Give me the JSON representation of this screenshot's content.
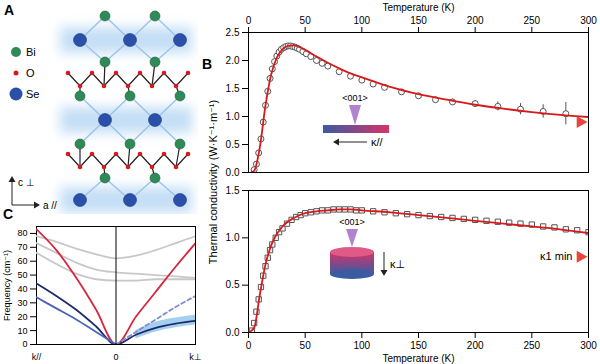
{
  "diagram": {
    "panel": "A",
    "legend": [
      {
        "label": "Bi",
        "color": "#2e8b57"
      },
      {
        "label": "O",
        "color": "#d7191c"
      },
      {
        "label": "Se",
        "color": "#2b50aa"
      }
    ],
    "axes": {
      "vertical": "c ⊥",
      "horizontal": "a //"
    }
  },
  "chart_data": [
    {
      "panel": "B",
      "type": "scatter",
      "xlabel": "Temperature (K)",
      "ylabel": "Thermal conductivity (W·K⁻¹·m⁻¹)",
      "xlim": [
        0,
        300
      ],
      "xticks": [
        0,
        50,
        100,
        150,
        200,
        250,
        300
      ],
      "ylim": [
        0,
        2.5
      ],
      "yticks": [
        {
          "value": 0,
          "label": "0.0"
        },
        0.5,
        {
          "value": 1,
          "label": "1.0"
        },
        1.5,
        {
          "value": 2,
          "label": "2.0"
        },
        2.5
      ],
      "annotations": {
        "direction": "<001>",
        "kappa": "κ//"
      },
      "series": [
        {
          "type": "scatter",
          "marker": "circle",
          "color": "#555555",
          "x": [
            5,
            7,
            9,
            11,
            13,
            15,
            17,
            19,
            21,
            23,
            25,
            27,
            29,
            31,
            33,
            35,
            37,
            39,
            41,
            43,
            45,
            48,
            51,
            55,
            60,
            65,
            70,
            80,
            90,
            100,
            110,
            120,
            135,
            150,
            165,
            180,
            200,
            220,
            240,
            260,
            280
          ],
          "values": [
            0.05,
            0.15,
            0.35,
            0.6,
            0.9,
            1.2,
            1.45,
            1.68,
            1.85,
            1.98,
            2.08,
            2.15,
            2.2,
            2.23,
            2.25,
            2.26,
            2.26,
            2.25,
            2.24,
            2.22,
            2.2,
            2.16,
            2.12,
            2.07,
            2.0,
            1.95,
            1.9,
            1.8,
            1.72,
            1.65,
            1.58,
            1.52,
            1.44,
            1.37,
            1.3,
            1.26,
            1.23,
            1.18,
            1.13,
            1.09,
            1.05
          ],
          "errors": [
            null,
            null,
            null,
            null,
            null,
            null,
            null,
            null,
            null,
            null,
            null,
            null,
            null,
            null,
            null,
            null,
            null,
            null,
            null,
            null,
            null,
            null,
            null,
            null,
            null,
            null,
            null,
            null,
            null,
            null,
            null,
            null,
            null,
            null,
            0.04,
            0.05,
            0.06,
            0.08,
            0.1,
            0.12,
            0.2
          ]
        },
        {
          "type": "line",
          "color": "#d7191c",
          "x": [
            2,
            5,
            10,
            15,
            20,
            25,
            30,
            35,
            40,
            45,
            50,
            60,
            70,
            80,
            90,
            100,
            125,
            150,
            175,
            200,
            225,
            250,
            275,
            300
          ],
          "values": [
            0,
            0.03,
            0.45,
            1.2,
            1.75,
            2.05,
            2.2,
            2.26,
            2.27,
            2.24,
            2.19,
            2.07,
            1.96,
            1.86,
            1.77,
            1.7,
            1.53,
            1.4,
            1.3,
            1.21,
            1.14,
            1.08,
            1.03,
            0.99
          ]
        }
      ],
      "limit": {
        "value": 0.9,
        "color": "#e8463a",
        "marker": "triangle"
      }
    },
    {
      "type": "scatter",
      "xlabel": "Temperature (K)",
      "xlim": [
        0,
        300
      ],
      "xticks": [
        0,
        50,
        100,
        150,
        200,
        250,
        300
      ],
      "ylim": [
        0,
        1.5
      ],
      "yticks": [
        {
          "value": 0,
          "label": "0.0"
        },
        0.5,
        {
          "value": 1,
          "label": "1.0"
        },
        1.5
      ],
      "annotations": {
        "direction": "<001>",
        "kappa": "κ⊥"
      },
      "series": [
        {
          "type": "scatter",
          "marker": "square",
          "color": "#555555",
          "x": [
            3,
            5,
            7,
            9,
            11,
            13,
            15,
            17,
            19,
            21,
            24,
            27,
            30,
            34,
            38,
            42,
            46,
            50,
            55,
            60,
            65,
            70,
            75,
            80,
            85,
            90,
            95,
            100,
            110,
            120,
            130,
            140,
            150,
            160,
            170,
            180,
            190,
            200,
            210,
            220,
            230,
            240,
            250,
            260,
            270,
            280,
            290,
            300
          ],
          "values": [
            0.02,
            0.1,
            0.22,
            0.35,
            0.48,
            0.6,
            0.7,
            0.79,
            0.87,
            0.93,
            1.0,
            1.06,
            1.1,
            1.15,
            1.19,
            1.22,
            1.24,
            1.26,
            1.27,
            1.28,
            1.29,
            1.29,
            1.3,
            1.3,
            1.3,
            1.3,
            1.29,
            1.29,
            1.28,
            1.27,
            1.26,
            1.25,
            1.24,
            1.23,
            1.22,
            1.21,
            1.2,
            1.19,
            1.18,
            1.17,
            1.16,
            1.15,
            1.14,
            1.12,
            1.11,
            1.09,
            1.08,
            1.06
          ]
        },
        {
          "type": "line",
          "color": "#d7191c",
          "x": [
            0,
            5,
            10,
            15,
            20,
            30,
            40,
            50,
            60,
            70,
            80,
            90,
            100,
            125,
            150,
            175,
            200,
            225,
            250,
            275,
            300
          ],
          "values": [
            0,
            0.05,
            0.4,
            0.72,
            0.92,
            1.12,
            1.21,
            1.26,
            1.28,
            1.29,
            1.3,
            1.3,
            1.29,
            1.27,
            1.24,
            1.21,
            1.18,
            1.15,
            1.12,
            1.09,
            1.05
          ]
        }
      ],
      "limit": {
        "value": 0.8,
        "label": "κ1 min",
        "color": "#e8463a",
        "marker": "triangle"
      }
    },
    {
      "panel": "C",
      "type": "line",
      "ylabel": "Frequency (cm⁻¹)",
      "xlim": [
        -1,
        1
      ],
      "xticks": [
        {
          "value": -1,
          "label": "k//"
        },
        0,
        {
          "value": 1,
          "label": "k⊥"
        }
      ],
      "ylim": [
        0,
        85
      ],
      "yticks": [
        0,
        10,
        20,
        30,
        40,
        50,
        60,
        70,
        80
      ],
      "band": {
        "color": "#8ec3ee",
        "x": [
          0.25,
          0.5,
          0.75,
          1
        ],
        "lower": [
          4,
          9,
          12,
          14
        ],
        "upper": [
          10,
          16,
          19,
          21
        ]
      },
      "series": [
        {
          "color": "#c8c8c8",
          "x": [
            -1,
            -0.75,
            -0.5,
            -0.25,
            0,
            0.25,
            0.5,
            0.75,
            1
          ],
          "values": [
            78,
            74,
            69,
            65,
            62,
            64,
            68,
            73,
            78
          ]
        },
        {
          "color": "#c8c8c8",
          "x": [
            -1,
            -0.75,
            -0.5,
            -0.25,
            0,
            0.25,
            0.5,
            0.75,
            1
          ],
          "values": [
            73,
            66,
            59,
            54,
            52,
            51,
            50,
            49,
            48
          ]
        },
        {
          "color": "#c8c8c8",
          "x": [
            -1,
            -0.75,
            -0.5,
            -0.25,
            0,
            0.25,
            0.5,
            0.75,
            1
          ],
          "values": [
            66,
            58,
            51,
            47,
            46,
            46,
            47,
            47,
            47
          ]
        },
        {
          "color": "#d7263d",
          "x": [
            -1,
            -0.75,
            -0.5,
            -0.25,
            0,
            0.25,
            0.5,
            0.75,
            1
          ],
          "values": [
            83,
            68,
            48,
            25,
            0,
            20,
            38,
            56,
            73
          ]
        },
        {
          "color": "#1b2a6b",
          "x": [
            -1,
            -0.75,
            -0.5,
            -0.25,
            0,
            0.25,
            0.5,
            0.75,
            1
          ],
          "values": [
            44,
            35,
            25,
            13,
            0,
            7,
            12,
            15,
            17
          ]
        },
        {
          "color": "#4a63b5",
          "x": [
            -1,
            -0.75,
            -0.5,
            -0.25,
            0
          ],
          "values": [
            34,
            26,
            18,
            9,
            0
          ]
        },
        {
          "color": "#7b8fd0",
          "line_style": "dashed",
          "x": [
            0,
            0.25,
            0.5,
            0.75,
            1
          ],
          "values": [
            0,
            9,
            18,
            27,
            35
          ]
        }
      ]
    }
  ]
}
